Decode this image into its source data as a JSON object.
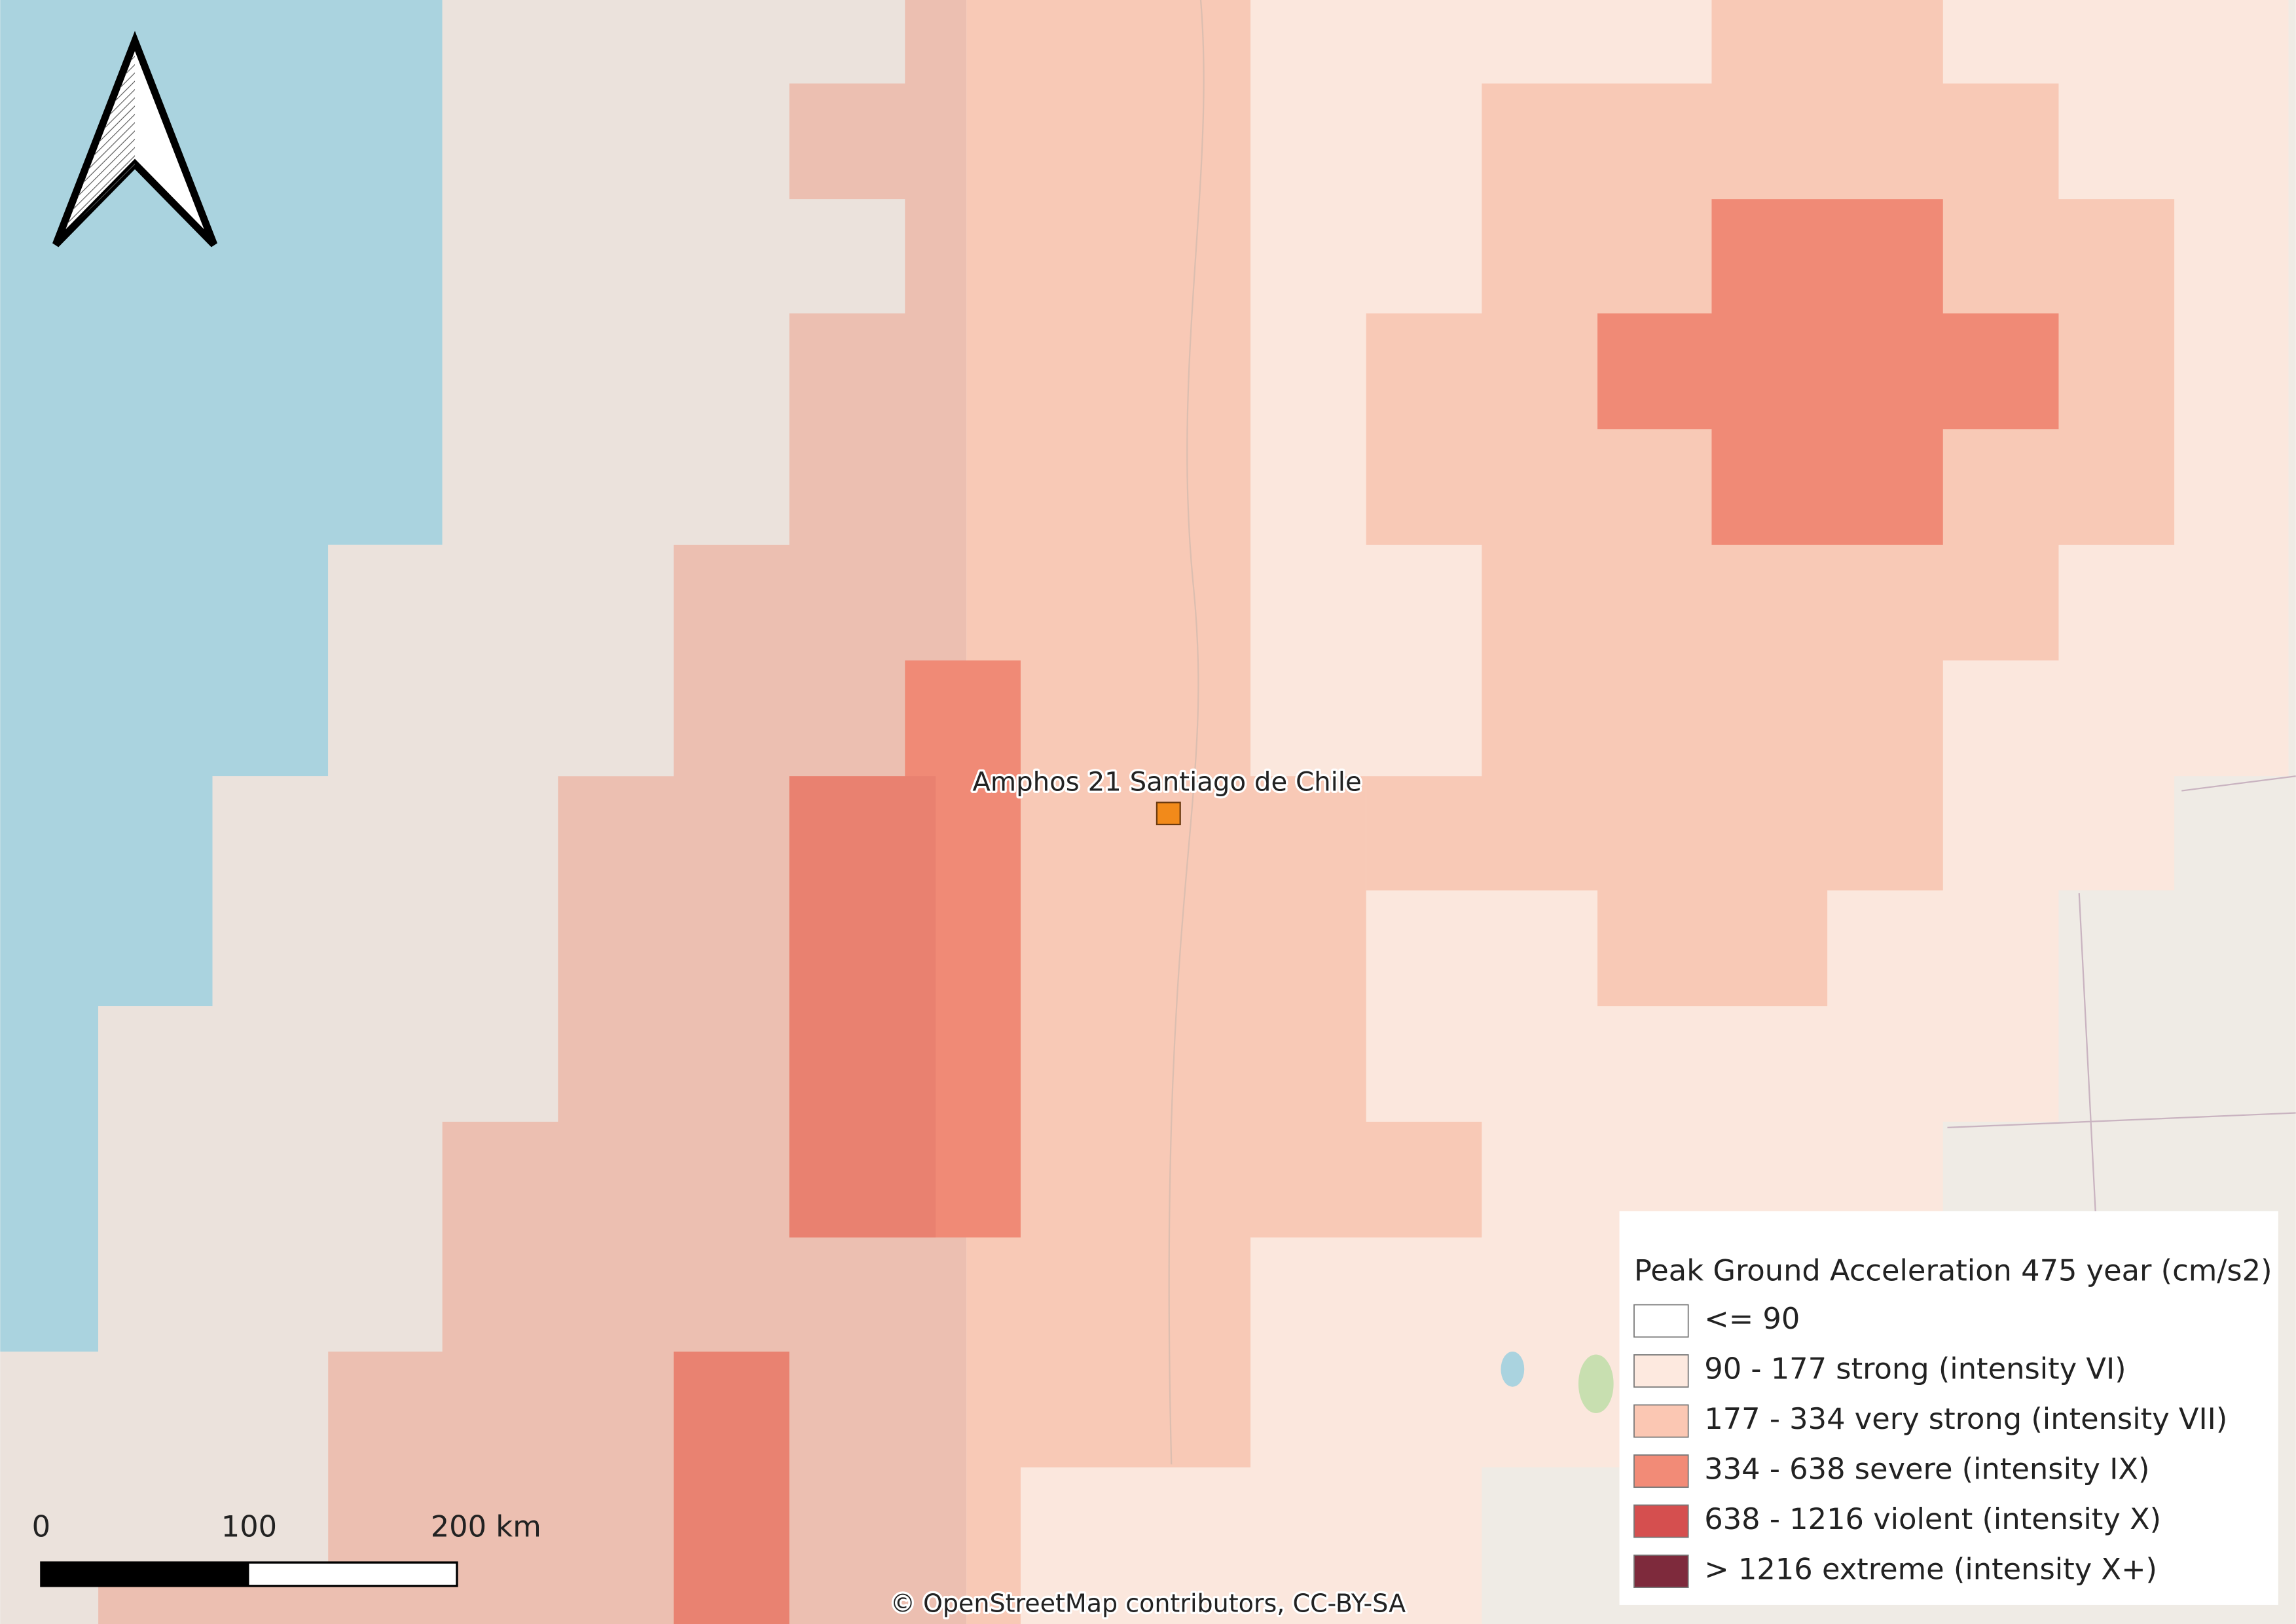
{
  "map": {
    "site": {
      "label": "Amphos 21 Santiago de Chile"
    },
    "scale_bar": {
      "labels": [
        "0",
        "100",
        "200 km"
      ]
    },
    "legend": {
      "title": "Peak Ground Acceleration 475 year (cm/s2)",
      "items": [
        {
          "label": "<= 90",
          "color": "#ffffff"
        },
        {
          "label": "90 - 177 strong (intensity VI)",
          "color": "#fde9df"
        },
        {
          "label": "177 - 334 very strong (intensity VII)",
          "color": "#fbc7b3"
        },
        {
          "label": "334 - 638 severe (intensity IX)",
          "color": "#f28b77"
        },
        {
          "label": "638 - 1216 violent (intensity X)",
          "color": "#d54f4f"
        },
        {
          "label": "> 1216 extreme (intensity X+)",
          "color": "#7e2a3c"
        }
      ]
    },
    "attribution": "© OpenStreetMap contributors, CC-BY-SA"
  }
}
